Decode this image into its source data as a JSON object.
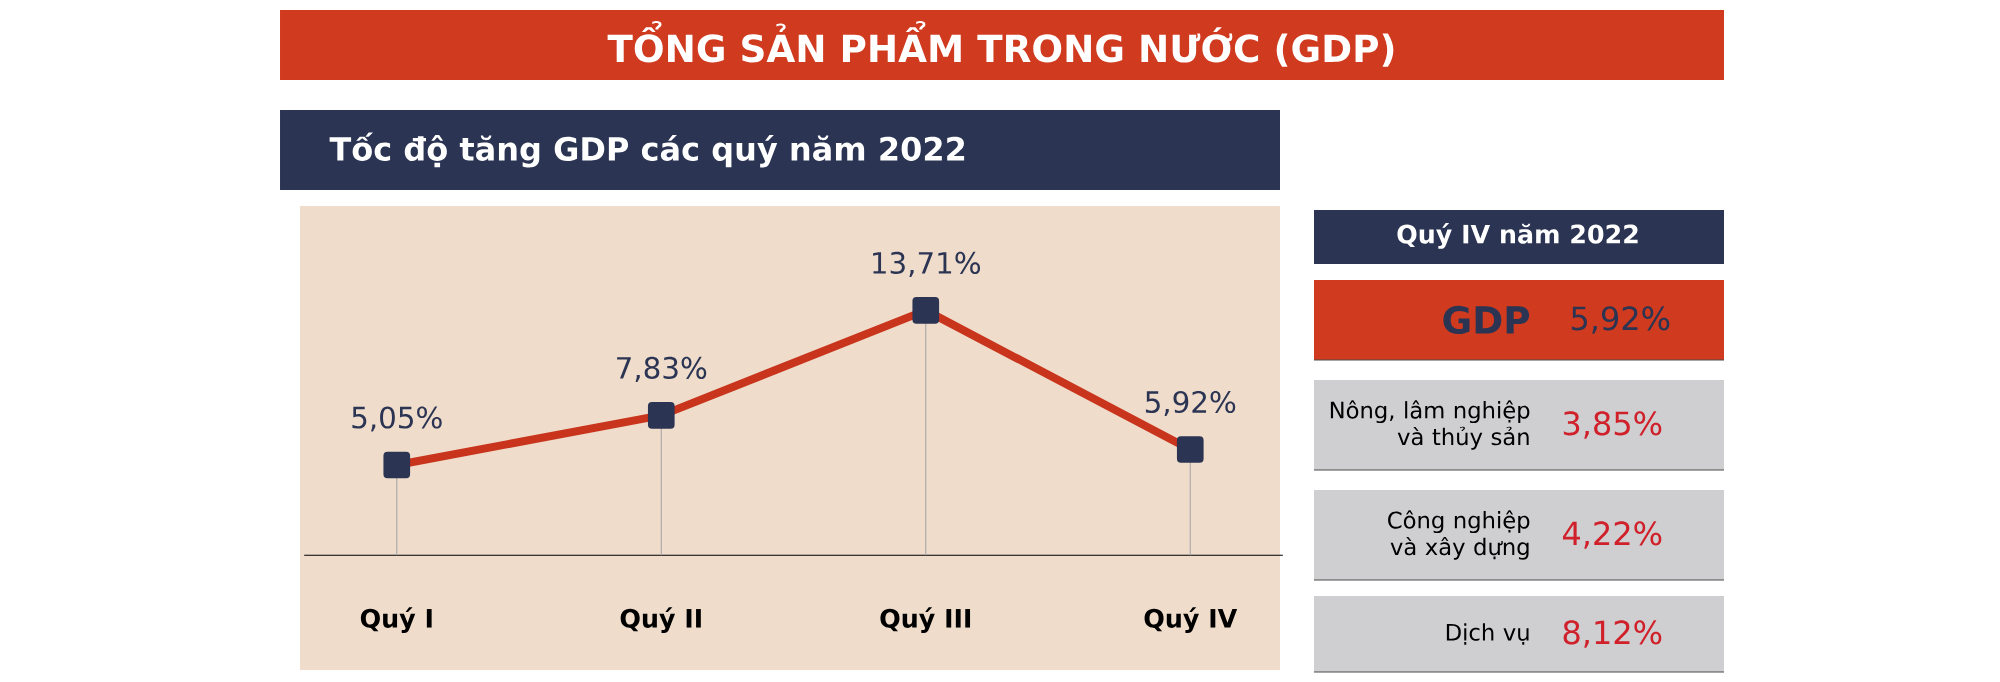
{
  "chart_data": [
    {
      "type": "line",
      "title": "TỔNG SẢN PHẨM TRONG NƯỚC (GDP)",
      "subtitle": "Tốc độ tăng GDP các quý năm 2022",
      "categories": [
        "Quý I",
        "Quý II",
        "Quý III",
        "Quý IV"
      ],
      "values": [
        5.05,
        7.83,
        13.71,
        5.92
      ],
      "value_labels": [
        "5,05%",
        "7,83%",
        "13,71%",
        "5,92%"
      ],
      "color": "#c8341c",
      "marker": "square",
      "line_style": "solid"
    },
    {
      "type": "other",
      "title": "Quý IV năm 2022",
      "annotations": [
        "GDP",
        "5,92%",
        "Nông, lâm nghiệp và thủy sản",
        "3,85%",
        "Công nghiệp và xây dựng",
        "4,22%",
        "Dịch vụ",
        "8,12%"
      ]
    }
  ]
}
